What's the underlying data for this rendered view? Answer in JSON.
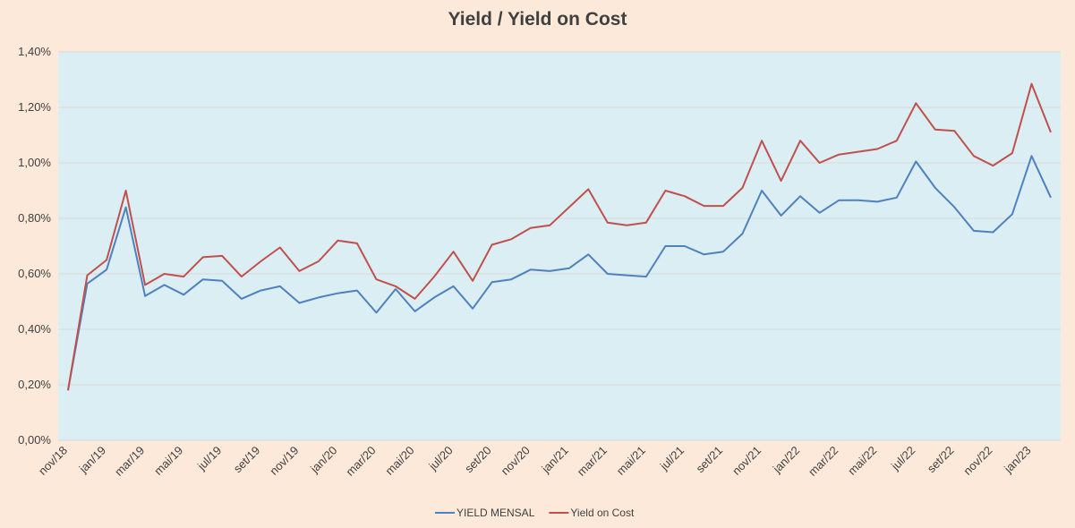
{
  "chart_data": {
    "type": "line",
    "title": "Yield / Yield on Cost",
    "xlabel": "",
    "ylabel": "",
    "ylim": [
      0,
      1.4
    ],
    "yticks": [
      "0,00%",
      "0,20%",
      "0,40%",
      "0,60%",
      "0,80%",
      "1,00%",
      "1,20%",
      "1,40%"
    ],
    "categories": [
      "nov/18",
      "dez/18",
      "jan/19",
      "fev/19",
      "mar/19",
      "abr/19",
      "mai/19",
      "jun/19",
      "jul/19",
      "ago/19",
      "set/19",
      "out/19",
      "nov/19",
      "dez/19",
      "jan/20",
      "fev/20",
      "mar/20",
      "abr/20",
      "mai/20",
      "jun/20",
      "jul/20",
      "ago/20",
      "set/20",
      "out/20",
      "nov/20",
      "dez/20",
      "jan/21",
      "fev/21",
      "mar/21",
      "abr/21",
      "mai/21",
      "jun/21",
      "jul/21",
      "ago/21",
      "set/21",
      "out/21",
      "nov/21",
      "dez/21",
      "jan/22",
      "fev/22",
      "mar/22",
      "abr/22",
      "mai/22",
      "jun/22",
      "jul/22",
      "ago/22",
      "set/22",
      "out/22",
      "nov/22",
      "dez/22",
      "jan/23",
      "fev/23"
    ],
    "tick_labels": [
      "nov/18",
      "jan/19",
      "mar/19",
      "mai/19",
      "jul/19",
      "set/19",
      "nov/19",
      "jan/20",
      "mar/20",
      "mai/20",
      "jul/20",
      "set/20",
      "nov/20",
      "jan/21",
      "mar/21",
      "mai/21",
      "jul/21",
      "set/21",
      "nov/21",
      "jan/22",
      "mar/22",
      "mai/22",
      "jul/22",
      "set/22",
      "nov/22",
      "jan/23"
    ],
    "series": [
      {
        "name": "YIELD MENSAL",
        "color": "#4f81bd",
        "values": [
          0.18,
          0.565,
          0.615,
          0.84,
          0.52,
          0.56,
          0.525,
          0.58,
          0.575,
          0.51,
          0.54,
          0.555,
          0.495,
          0.515,
          0.53,
          0.54,
          0.46,
          0.545,
          0.465,
          0.515,
          0.555,
          0.475,
          0.57,
          0.58,
          0.615,
          0.61,
          0.62,
          0.67,
          0.6,
          0.595,
          0.59,
          0.7,
          0.7,
          0.67,
          0.68,
          0.745,
          0.9,
          0.81,
          0.88,
          0.82,
          0.865,
          0.865,
          0.86,
          0.875,
          1.005,
          0.91,
          0.84,
          0.755,
          0.75,
          0.815,
          1.025,
          0.875
        ]
      },
      {
        "name": "Yield on Cost",
        "color": "#c0504d",
        "values": [
          0.18,
          0.595,
          0.65,
          0.9,
          0.56,
          0.6,
          0.59,
          0.66,
          0.665,
          0.59,
          0.645,
          0.695,
          0.61,
          0.645,
          0.72,
          0.71,
          0.58,
          0.555,
          0.51,
          0.59,
          0.68,
          0.575,
          0.705,
          0.725,
          0.765,
          0.775,
          0.84,
          0.905,
          0.785,
          0.775,
          0.785,
          0.9,
          0.88,
          0.845,
          0.845,
          0.91,
          1.08,
          0.935,
          1.08,
          1.0,
          1.03,
          1.04,
          1.05,
          1.08,
          1.215,
          1.12,
          1.115,
          1.025,
          0.99,
          1.035,
          1.285,
          1.11
        ]
      }
    ],
    "grid": true,
    "legend": "bottom"
  }
}
